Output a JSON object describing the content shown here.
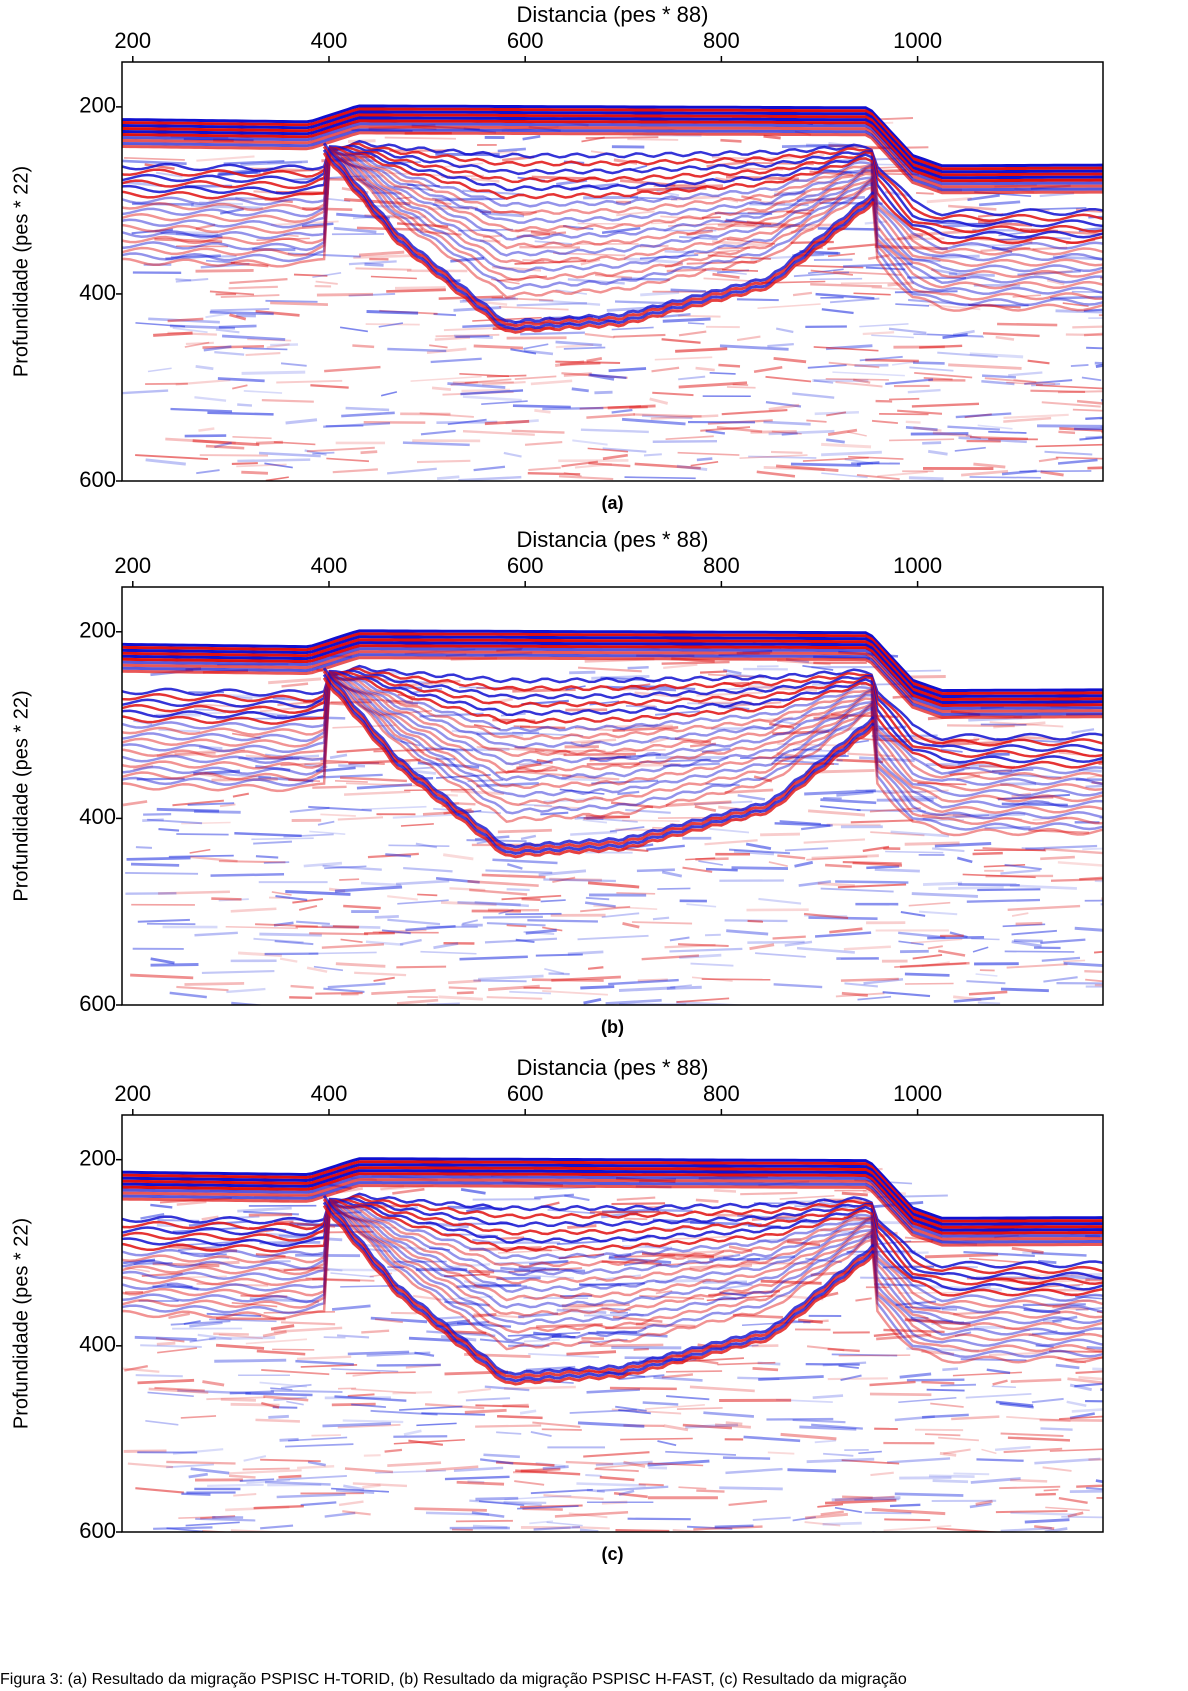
{
  "chart_data": [
    {
      "type": "image",
      "title": "Distancia (pes * 88)",
      "ylabel": "Profundidade (pes * 22)",
      "label": "(a)",
      "xlim": [
        189,
        1189
      ],
      "xticks": [
        200,
        400,
        600,
        800,
        1000
      ],
      "ylim": [
        600,
        152
      ],
      "yticks": [
        200,
        400,
        600
      ]
    },
    {
      "type": "image",
      "title": "Distancia (pes * 88)",
      "ylabel": "Profundidade (pes * 22)",
      "label": "(b)",
      "xlim": [
        189,
        1189
      ],
      "xticks": [
        200,
        400,
        600,
        800,
        1000
      ],
      "ylim": [
        600,
        152
      ],
      "yticks": [
        200,
        400,
        600
      ]
    },
    {
      "type": "image",
      "title": "Distancia (pes * 88)",
      "ylabel": "Profundidade (pes * 22)",
      "label": "(c)",
      "xlim": [
        189,
        1189
      ],
      "xticks": [
        200,
        400,
        600,
        800,
        1000
      ],
      "ylim": [
        600,
        152
      ],
      "yticks": [
        200,
        400,
        600
      ]
    }
  ],
  "caption": "Figura 3: (a) Resultado da migração PSPISC H-TORID, (b) Resultado da migração PSPISC H-FAST, (c) Resultado da migração"
}
